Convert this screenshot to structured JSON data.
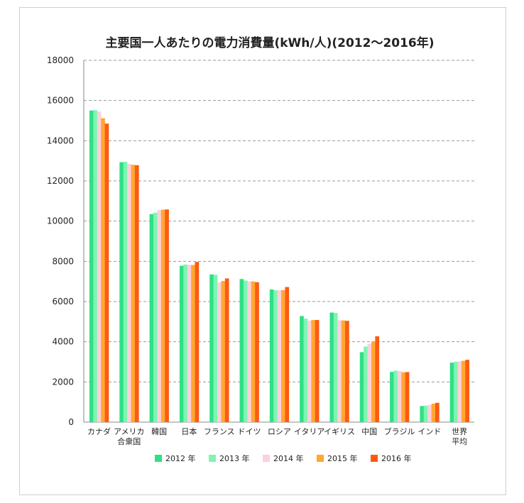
{
  "chart_data": {
    "type": "bar",
    "title": "主要国一人あたりの電力消費量(kWh/人)(2012〜2016年)",
    "xlabel": "",
    "ylabel": "",
    "ylim": [
      0,
      18000
    ],
    "yticks": [
      0,
      2000,
      4000,
      6000,
      8000,
      10000,
      12000,
      14000,
      16000,
      18000
    ],
    "grid": true,
    "legend_position": "bottom",
    "categories": [
      [
        "カナダ"
      ],
      [
        "アメリカ",
        "合衆国"
      ],
      [
        "韓国"
      ],
      [
        "日本"
      ],
      [
        "フランス"
      ],
      [
        "ドイツ"
      ],
      [
        "ロシア"
      ],
      [
        "イタリア"
      ],
      [
        "イギリス"
      ],
      [
        "中国"
      ],
      [
        "ブラジル"
      ],
      [
        "インド"
      ],
      [
        "世界",
        "平均"
      ]
    ],
    "series": [
      {
        "name": "2012 年",
        "color": "#2fe085",
        "values": [
          15500,
          12930,
          10350,
          7780,
          7350,
          7120,
          6600,
          5280,
          5450,
          3480,
          2500,
          800,
          2960
        ]
      },
      {
        "name": "2013 年",
        "color": "#7df5b3",
        "values": [
          15520,
          12950,
          10420,
          7840,
          7330,
          7040,
          6560,
          5150,
          5430,
          3760,
          2560,
          820,
          3000
        ]
      },
      {
        "name": "2014 年",
        "color": "#fcd0dc",
        "values": [
          15450,
          12850,
          10550,
          7820,
          6950,
          7000,
          6560,
          5050,
          5070,
          3900,
          2550,
          860,
          3020
        ]
      },
      {
        "name": "2015 年",
        "color": "#ffa832",
        "values": [
          15120,
          12800,
          10570,
          7820,
          7020,
          7000,
          6570,
          5080,
          5060,
          4000,
          2480,
          920,
          3050
        ]
      },
      {
        "name": "2016 年",
        "color": "#ff5a12",
        "values": [
          14850,
          12780,
          10580,
          7970,
          7150,
          6960,
          6720,
          5080,
          5040,
          4270,
          2490,
          960,
          3100
        ]
      }
    ]
  }
}
